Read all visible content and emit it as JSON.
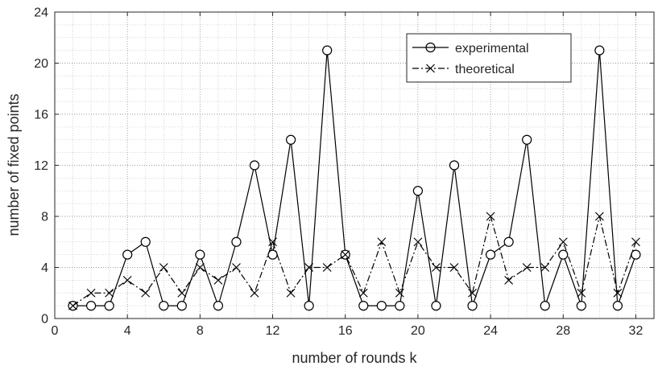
{
  "chart_data": {
    "type": "line",
    "xlabel": "number of rounds k",
    "ylabel": "number of fixed points",
    "xlim": [
      0,
      33
    ],
    "ylim": [
      0,
      24
    ],
    "xticks": [
      0,
      4,
      8,
      12,
      16,
      20,
      24,
      28,
      32
    ],
    "yticks": [
      0,
      4,
      8,
      12,
      16,
      20,
      24
    ],
    "minor_grid_step": {
      "x": 1,
      "y": 1
    },
    "grid": true,
    "legend_position": "top-right",
    "x": [
      1,
      2,
      3,
      4,
      5,
      6,
      7,
      8,
      9,
      10,
      11,
      12,
      13,
      14,
      15,
      16,
      17,
      18,
      19,
      20,
      21,
      22,
      23,
      24,
      25,
      26,
      27,
      28,
      29,
      30,
      31,
      32
    ],
    "series": [
      {
        "name": "experimental",
        "style": "solid line, circle markers",
        "color": "#000000",
        "values": [
          1,
          1,
          1,
          5,
          6,
          1,
          1,
          5,
          1,
          6,
          12,
          5,
          14,
          1,
          21,
          5,
          1,
          1,
          1,
          10,
          1,
          12,
          1,
          5,
          6,
          14,
          1,
          5,
          1,
          21,
          1,
          5
        ]
      },
      {
        "name": "theoretical",
        "style": "dash-dot line, cross markers",
        "color": "#000000",
        "values": [
          1,
          2,
          2,
          3,
          2,
          4,
          2,
          4,
          3,
          4,
          2,
          6,
          2,
          4,
          4,
          5,
          2,
          6,
          2,
          6,
          4,
          4,
          2,
          8,
          3,
          4,
          4,
          6,
          2,
          8,
          2,
          6
        ]
      }
    ]
  }
}
